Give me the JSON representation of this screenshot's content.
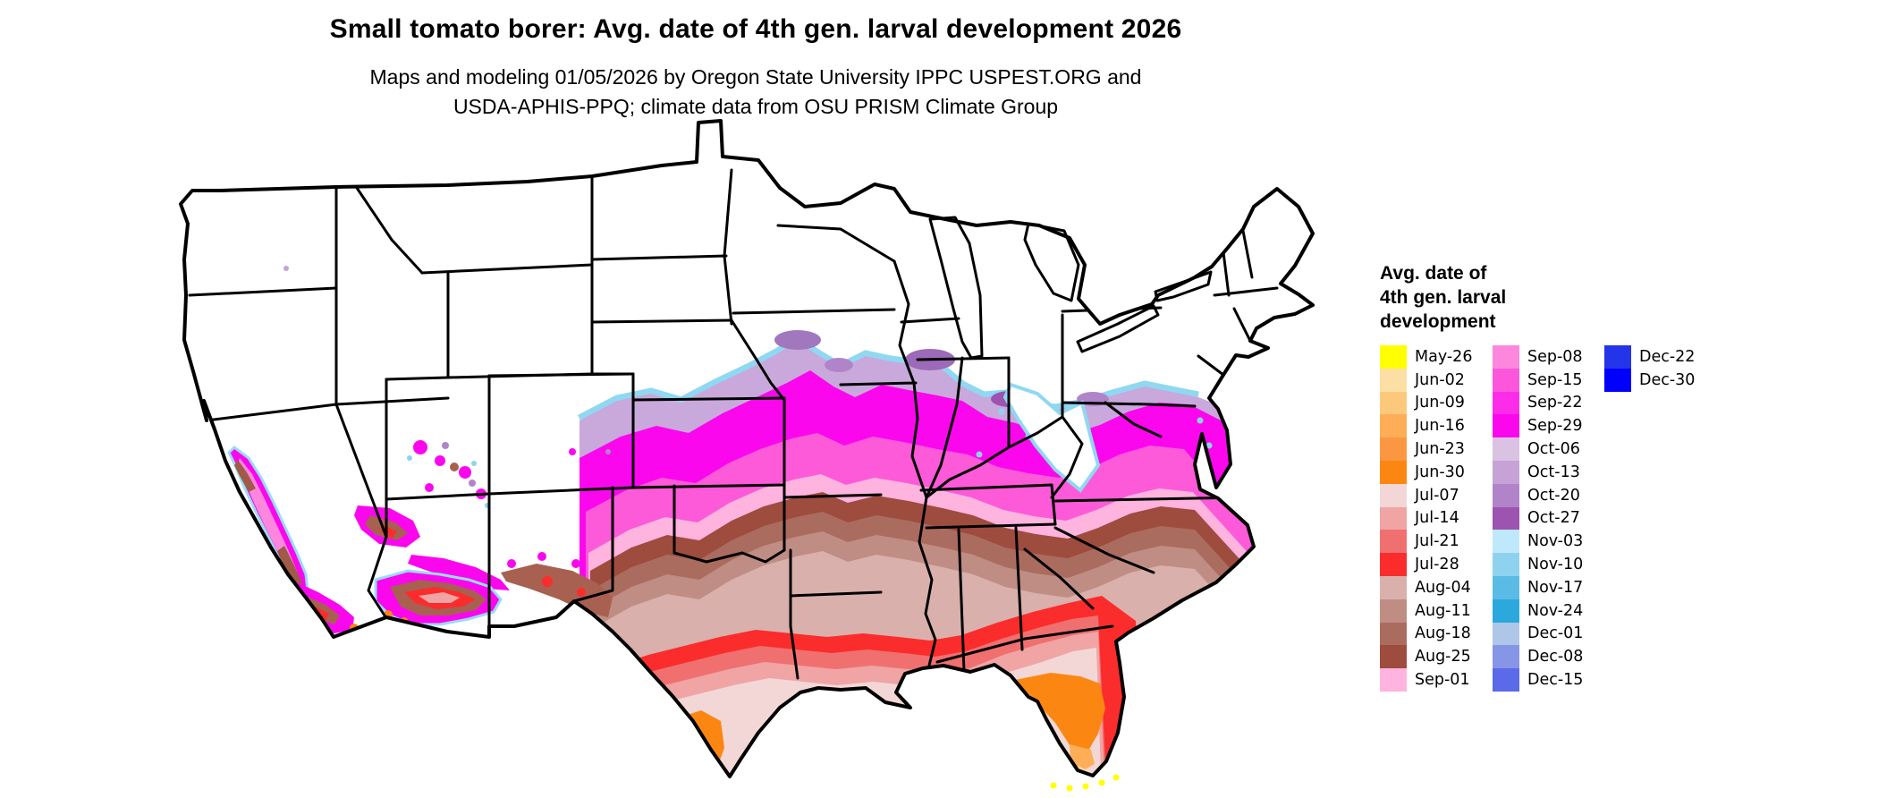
{
  "header": {
    "title": "Small tomato borer: Avg. date of 4th gen. larval development 2026",
    "subtitle_line1": "Maps and modeling 01/05/2026 by Oregon State University IPPC USPEST.ORG and",
    "subtitle_line2": "USDA-APHIS-PPQ; climate data from OSU PRISM Climate Group"
  },
  "legend": {
    "title_lines": [
      "Avg. date of",
      "4th gen. larval",
      "development"
    ],
    "columns": [
      {
        "entries": [
          {
            "label": "May-26",
            "color": "#FFFF00"
          },
          {
            "label": "Jun-02",
            "color": "#FCDFA4"
          },
          {
            "label": "Jun-09",
            "color": "#FCC97C"
          },
          {
            "label": "Jun-16",
            "color": "#FDAE57"
          },
          {
            "label": "Jun-23",
            "color": "#FB9743"
          },
          {
            "label": "Jun-30",
            "color": "#FB8712"
          },
          {
            "label": "Jul-07",
            "color": "#F3D7D7"
          },
          {
            "label": "Jul-14",
            "color": "#F0A4A4"
          },
          {
            "label": "Jul-21",
            "color": "#F07070"
          },
          {
            "label": "Jul-28",
            "color": "#FB2C2C"
          },
          {
            "label": "Aug-04",
            "color": "#D9B0AB"
          },
          {
            "label": "Aug-11",
            "color": "#C08D84"
          },
          {
            "label": "Aug-18",
            "color": "#AB6C60"
          },
          {
            "label": "Aug-25",
            "color": "#9E4C3E"
          },
          {
            "label": "Sep-01",
            "color": "#FFB3DF"
          }
        ]
      },
      {
        "entries": [
          {
            "label": "Sep-08",
            "color": "#FC87DC"
          },
          {
            "label": "Sep-15",
            "color": "#FC57DC"
          },
          {
            "label": "Sep-22",
            "color": "#FC2CE8"
          },
          {
            "label": "Sep-29",
            "color": "#FA07EE"
          },
          {
            "label": "Oct-06",
            "color": "#D9C2E2"
          },
          {
            "label": "Oct-13",
            "color": "#C6A2D6"
          },
          {
            "label": "Oct-20",
            "color": "#B184C9"
          },
          {
            "label": "Oct-27",
            "color": "#9C54B0"
          },
          {
            "label": "Nov-03",
            "color": "#BFE9FA"
          },
          {
            "label": "Nov-10",
            "color": "#8FD2F0"
          },
          {
            "label": "Nov-17",
            "color": "#5ABCE4"
          },
          {
            "label": "Nov-24",
            "color": "#2BA8DC"
          },
          {
            "label": "Dec-01",
            "color": "#AEC6E8"
          },
          {
            "label": "Dec-08",
            "color": "#8795E6"
          },
          {
            "label": "Dec-15",
            "color": "#5A6AE8"
          }
        ]
      },
      {
        "entries": [
          {
            "label": "Dec-22",
            "color": "#2434E8"
          },
          {
            "label": "Dec-30",
            "color": "#0000FC"
          }
        ]
      }
    ]
  },
  "map": {
    "name": "conus-avg-date-4th-gen-larval-development",
    "no_data_color": "#FFFFFF",
    "border_color": "#000000"
  }
}
